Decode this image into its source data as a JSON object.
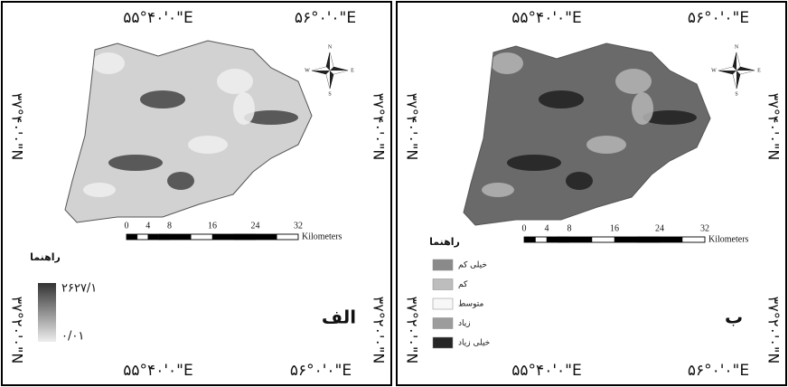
{
  "panels": [
    {
      "label": "الف",
      "top_coords": [
        "۵۵°۴۰'۰\"E",
        "۵۶°۰'۰\"E"
      ],
      "bottom_coords": [
        "۵۵°۴۰'۰\"E",
        "۵۶°۰'۰\"E"
      ],
      "left_coords": [
        "۳۷°۴۰'۰\"N",
        "۳۷°۲۰'۰\"N"
      ],
      "right_coords": [
        "۳۷°۴۰'۰\"N",
        "۳۷°۲۰'۰\"N"
      ],
      "scale_ticks": [
        "0",
        "4",
        "8",
        "16",
        "24",
        "32"
      ],
      "scale_unit": "Kilometers",
      "legend_title": "راهنما",
      "legend_max": "۲۶۲۷/۱",
      "legend_min": "۰/۰۱",
      "compass": [
        "N",
        "E",
        "S",
        "W"
      ]
    },
    {
      "label": "ب",
      "top_coords": [
        "۵۵°۴۰'۰\"E",
        "۵۶°۰'۰\"E"
      ],
      "bottom_coords": [
        "۵۵°۴۰'۰\"E",
        "۵۶°۰'۰\"E"
      ],
      "left_coords": [
        "۳۷°۴۰'۰\"N",
        "۳۷°۲۰'۰\"N"
      ],
      "right_coords": [
        "۳۷°۴۰'۰\"N",
        "۳۷°۲۰'۰\"N"
      ],
      "scale_ticks": [
        "0",
        "4",
        "8",
        "16",
        "24",
        "32"
      ],
      "scale_unit": "Kilometers",
      "legend_title": "راهنما",
      "legend_items": [
        "خیلی کم",
        "کم",
        "متوسط",
        "زیاد",
        "خیلی زیاد"
      ],
      "compass": [
        "N",
        "E",
        "S",
        "W"
      ]
    }
  ]
}
